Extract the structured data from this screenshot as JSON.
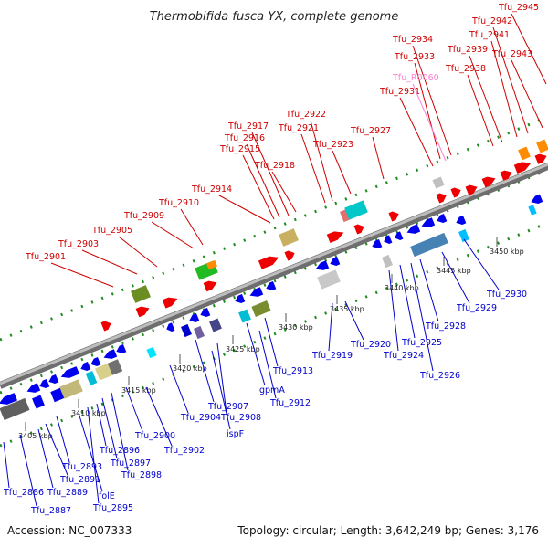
{
  "title": "Thermobifida fusca YX, complete genome",
  "footer": {
    "accession": "Accession: NC_007333",
    "topology": "Topology: circular; Length: 3,642,249 bp; Genes: 3,176"
  },
  "colors": {
    "forward_label": "#cc0000",
    "reverse_label": "#0000cc",
    "rna_label": "#ff7fd0",
    "backbone": "#8a8a8a",
    "tick_green": "#228b22"
  },
  "ticks": [
    "3405 kbp",
    "3410 kbp",
    "3415 kbp",
    "3420 kbp",
    "3425 kbp",
    "3430 kbp",
    "3435 kbp",
    "3440 kbp",
    "3445 kbp",
    "3450 kbp"
  ],
  "forward_labels": [
    "Tfu_2901",
    "Tfu_2903",
    "Tfu_2905",
    "Tfu_2909",
    "Tfu_2910",
    "Tfu_2914",
    "Tfu_2915",
    "Tfu_2916",
    "Tfu_2917",
    "Tfu_2918",
    "Tfu_2921",
    "Tfu_2922",
    "Tfu_2923",
    "Tfu_2927",
    "Tfu_2931",
    "Tfu_2933",
    "Tfu_2934",
    "Tfu_2938",
    "Tfu_2939",
    "Tfu_2941",
    "Tfu_2942",
    "Tfu_2943",
    "Tfu_2945"
  ],
  "rna_labels": [
    "Tfu_R0060"
  ],
  "reverse_labels": [
    "Tfu_2886",
    "Tfu_2887",
    "Tfu_2889",
    "Tfu_2891",
    "Tfu_2893",
    "folE",
    "Tfu_2895",
    "Tfu_2896",
    "Tfu_2897",
    "Tfu_2898",
    "Tfu_2900",
    "Tfu_2902",
    "Tfu_2904",
    "Tfu_2907",
    "ispF",
    "Tfu_2908",
    "gpmA",
    "Tfu_2912",
    "Tfu_2913",
    "Tfu_2919",
    "Tfu_2920",
    "Tfu_2924",
    "Tfu_2925",
    "Tfu_2926",
    "Tfu_2928",
    "Tfu_2929",
    "Tfu_2930"
  ]
}
